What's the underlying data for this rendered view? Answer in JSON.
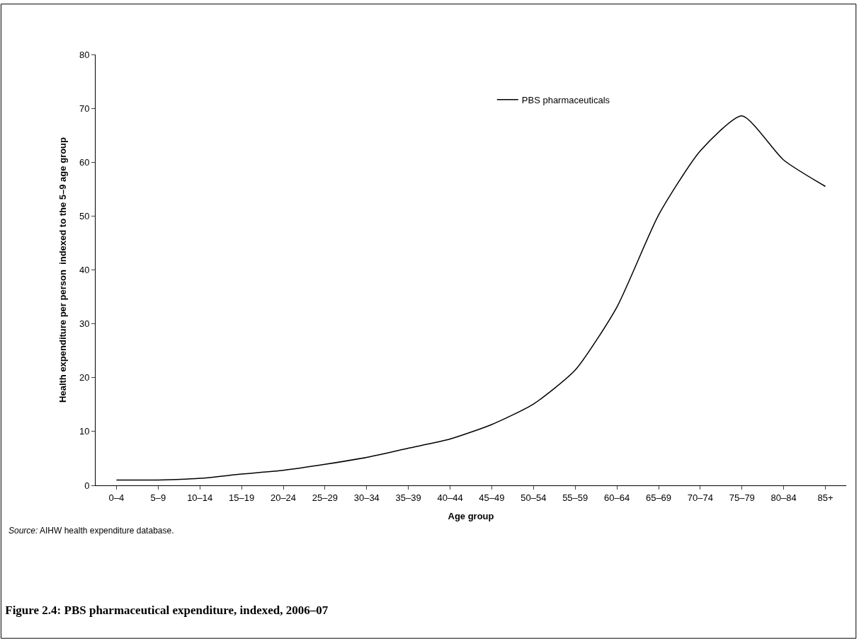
{
  "chart_data": {
    "type": "line",
    "title": "Figure 2.4: PBS pharmaceutical expenditure, indexed, 2006–07",
    "xlabel": "Age group",
    "ylabel": "Health expenditure per person  indexed to the 5–9 age group",
    "categories": [
      "0–4",
      "5–9",
      "10–14",
      "15–19",
      "20–24",
      "25–29",
      "30–34",
      "35–39",
      "40–44",
      "45–49",
      "50–54",
      "55–59",
      "60–64",
      "65–69",
      "70–74",
      "75–79",
      "80–84",
      "85+"
    ],
    "series": [
      {
        "name": "PBS pharmaceuticals",
        "color": "#000000",
        "values": [
          1.0,
          1.0,
          1.3,
          2.1,
          2.8,
          3.9,
          5.2,
          6.9,
          8.6,
          11.3,
          15.1,
          21.4,
          33.1,
          50.2,
          62.1,
          68.6,
          60.4,
          55.5
        ]
      }
    ],
    "ylim": [
      0,
      80
    ],
    "yticks": [
      0,
      10,
      20,
      30,
      40,
      50,
      60,
      70,
      80
    ],
    "legend": "top right",
    "marker": "none",
    "line_style": "solid",
    "annotations": [
      "Source: AIHW health expenditure database."
    ]
  }
}
